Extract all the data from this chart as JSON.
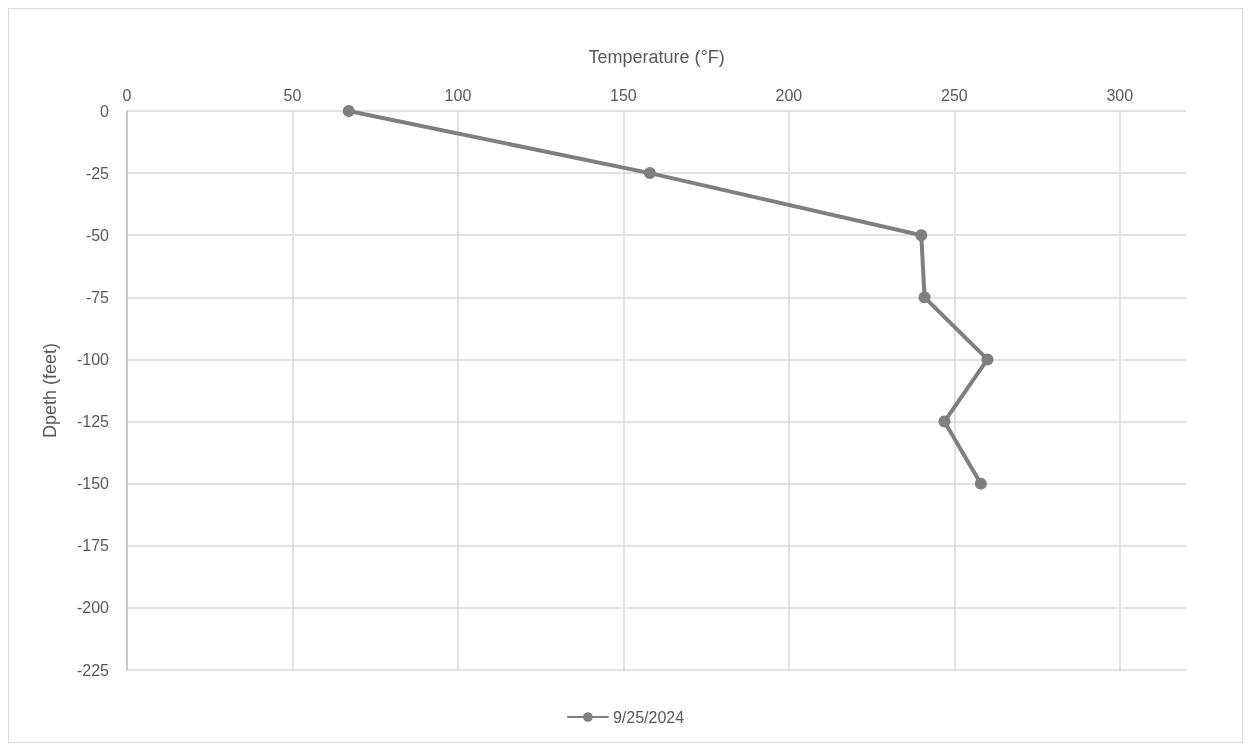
{
  "chart_data": {
    "type": "line",
    "xlabel": "Temperature (°F)",
    "ylabel": "Dpeth (feet)",
    "xlim": [
      0,
      320
    ],
    "xticks": [
      0,
      50,
      100,
      150,
      200,
      250,
      300
    ],
    "ylim": [
      -225,
      0
    ],
    "yticks": [
      -225,
      -200,
      -175,
      -150,
      -125,
      -100,
      -75,
      -50,
      -25,
      0
    ],
    "series": [
      {
        "name": "9/25/2024",
        "color": "#7f7f7f",
        "x": [
          67,
          158,
          240,
          241,
          260,
          247,
          258
        ],
        "values": [
          0,
          -25,
          -50,
          -75,
          -100,
          -125,
          -150
        ]
      }
    ],
    "grid": true,
    "legend": "bottom",
    "marker": "circle",
    "line_style": "solid"
  }
}
